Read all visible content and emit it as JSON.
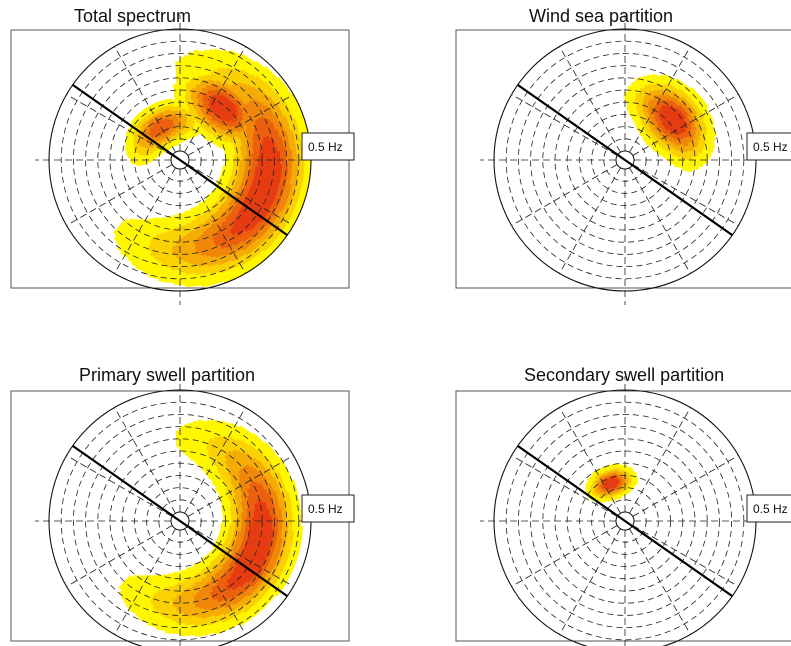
{
  "chart_data": [
    {
      "type": "polar_contour",
      "title": "Total spectrum",
      "ring_label": "0.5 Hz",
      "blobs": [
        {
          "freq": 0.33,
          "dir_deg": 110,
          "freq_width": 0.09,
          "dir_width_deg": 55,
          "peak": 1.0
        },
        {
          "freq": 0.24,
          "dir_deg": 40,
          "freq_width": 0.07,
          "dir_width_deg": 22,
          "peak": 1.0
        },
        {
          "freq": 0.12,
          "dir_deg": 330,
          "freq_width": 0.05,
          "dir_width_deg": 35,
          "peak": 0.8
        }
      ]
    },
    {
      "type": "polar_contour",
      "title": "Wind sea partition",
      "ring_label": "0.5 Hz",
      "blobs": [
        {
          "freq": 0.22,
          "dir_deg": 50,
          "freq_width": 0.07,
          "dir_width_deg": 24,
          "peak": 1.0
        }
      ]
    },
    {
      "type": "polar_contour",
      "title": "Primary swell partition",
      "ring_label": "0.5 Hz",
      "blobs": [
        {
          "freq": 0.3,
          "dir_deg": 110,
          "freq_width": 0.08,
          "dir_width_deg": 55,
          "peak": 1.0
        }
      ]
    },
    {
      "type": "polar_contour",
      "title": "Secondary swell partition",
      "ring_label": "0.5 Hz",
      "blobs": [
        {
          "freq": 0.13,
          "dir_deg": 340,
          "freq_width": 0.035,
          "dir_width_deg": 18,
          "peak": 1.0
        }
      ]
    }
  ],
  "colors": {
    "low": "#fff700",
    "high": "#e63c12",
    "grid": "#222222",
    "divider": "#000000"
  }
}
